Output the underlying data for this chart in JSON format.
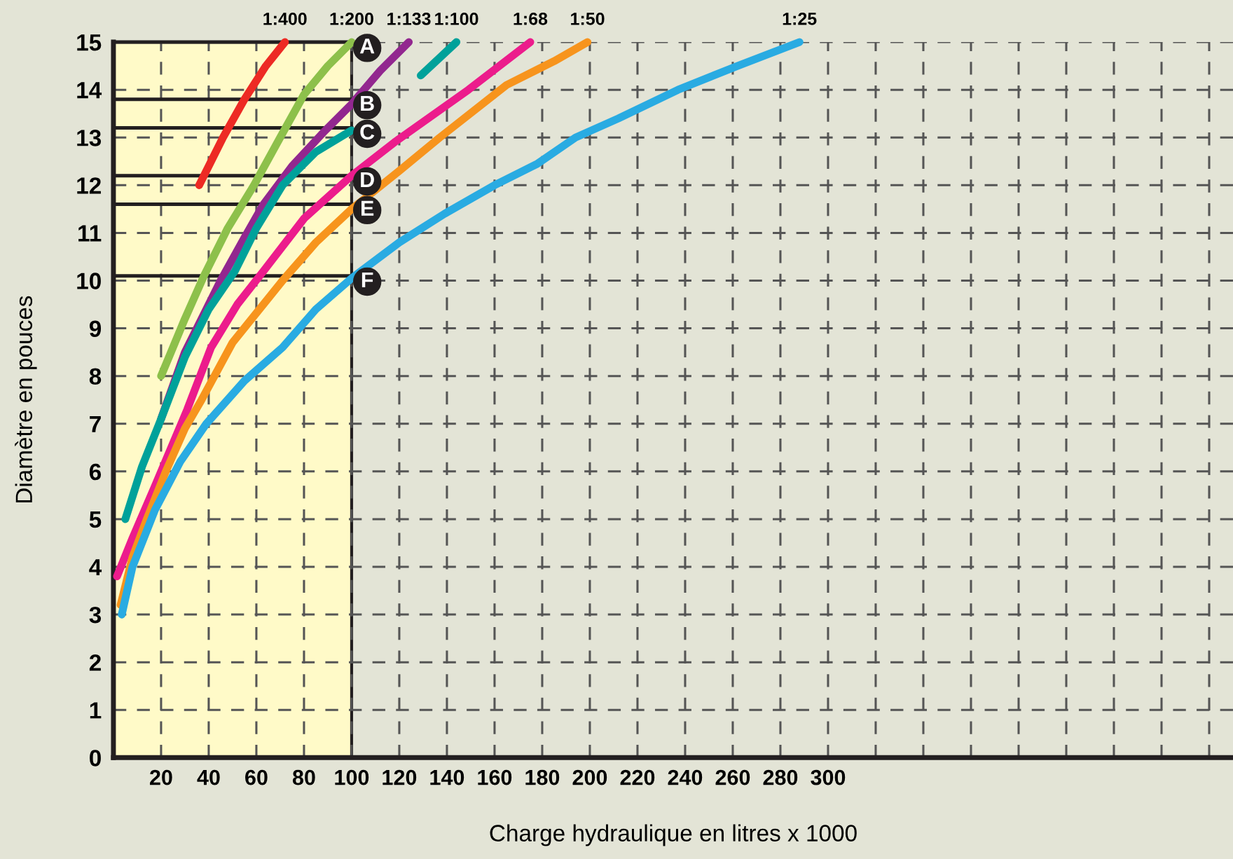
{
  "chart_data": {
    "type": "line",
    "xlabel": "Charge hydraulique en litres x 1000",
    "ylabel": "Diamètre en pouces",
    "xlim": [
      0,
      470
    ],
    "ylim": [
      0,
      15
    ],
    "xticks": [
      20,
      40,
      60,
      80,
      100,
      120,
      140,
      160,
      180,
      200,
      220,
      240,
      260,
      280,
      300,
      {
        "value": 320,
        "label": null
      },
      {
        "value": 340,
        "label": null
      },
      {
        "value": 360,
        "label": null
      },
      {
        "value": 380,
        "label": null
      },
      {
        "value": 400,
        "label": null
      },
      {
        "value": 420,
        "label": null
      },
      {
        "value": 440,
        "label": null
      },
      {
        "value": 460,
        "label": null
      }
    ],
    "yticks": [
      0,
      1,
      2,
      3,
      4,
      5,
      6,
      7,
      8,
      9,
      10,
      11,
      12,
      13,
      14,
      15
    ],
    "grid": true,
    "line_style": "solid",
    "marker": "none",
    "legend": false,
    "bands": [
      {
        "axis": "x",
        "from": 0,
        "to": 100,
        "color": "#fffac8"
      }
    ],
    "ref_lines": [
      {
        "axis": "y",
        "value": 15,
        "label": "A",
        "color": "#231f20"
      },
      {
        "axis": "y",
        "value": 13.8,
        "label": "B",
        "color": "#231f20"
      },
      {
        "axis": "y",
        "value": 13.2,
        "label": "C",
        "color": "#231f20"
      },
      {
        "axis": "y",
        "value": 12.2,
        "label": "D",
        "color": "#231f20"
      },
      {
        "axis": "y",
        "value": 11.6,
        "label": "E",
        "color": "#231f20"
      },
      {
        "axis": "y",
        "value": 10.1,
        "label": "F",
        "color": "#231f20"
      }
    ],
    "series": [
      {
        "name": "1:400",
        "color": "#ed2a24",
        "x": [
          36,
          46,
          55,
          64,
          72
        ],
        "values": [
          12,
          13,
          13.8,
          14.5,
          15
        ]
      },
      {
        "name": "1:200",
        "color": "#8dc04b",
        "x": [
          20,
          30,
          38,
          48,
          59,
          70,
          80,
          90,
          100
        ],
        "values": [
          8,
          9.2,
          10.1,
          11.1,
          12,
          13,
          13.9,
          14.5,
          15
        ]
      },
      {
        "name": "1:133",
        "color": "#92278f",
        "x": [
          20,
          30,
          45,
          55,
          63,
          75,
          88,
          100,
          112,
          124
        ],
        "values": [
          7.1,
          8.5,
          10,
          10.9,
          11.6,
          12.4,
          13.1,
          13.7,
          14.4,
          15
        ]
      },
      {
        "name": "1:100",
        "color": "#00a19a",
        "x": [
          5,
          12,
          20,
          30,
          40,
          51,
          60,
          71,
          85,
          100,
          110,
          129,
          144
        ],
        "values": [
          5,
          6.1,
          7.1,
          8.4,
          9.4,
          10.2,
          11.1,
          12,
          12.7,
          13.15,
          null,
          14.3,
          15
        ]
      },
      {
        "name": "1:68",
        "color": "#ec1c8c",
        "x": [
          1.5,
          8,
          17.5,
          31,
          41,
          52,
          63,
          80,
          100,
          118,
          149,
          175
        ],
        "values": [
          3.8,
          4.6,
          5.7,
          7.3,
          8.6,
          9.5,
          10.2,
          11.3,
          12.2,
          12.9,
          14,
          15
        ]
      },
      {
        "name": "1:50",
        "color": "#f7941d",
        "x": [
          3,
          8,
          14,
          22,
          30,
          37,
          50,
          71,
          85,
          100,
          120,
          137,
          165,
          185,
          199
        ],
        "values": [
          3.2,
          4.2,
          5,
          6,
          6.9,
          7.5,
          8.7,
          10,
          10.8,
          11.5,
          12.3,
          13,
          14.1,
          14.6,
          15
        ]
      },
      {
        "name": "1:25",
        "color": "#29abe2",
        "x": [
          3.5,
          8,
          17.5,
          28,
          39,
          55,
          71,
          85,
          100,
          120,
          139,
          160,
          178,
          194,
          212,
          237,
          262,
          288
        ],
        "values": [
          3,
          4,
          5.2,
          6.2,
          7,
          7.9,
          8.6,
          9.4,
          10.05,
          10.8,
          11.4,
          12,
          12.45,
          13,
          13.4,
          14,
          14.5,
          15
        ]
      }
    ]
  }
}
